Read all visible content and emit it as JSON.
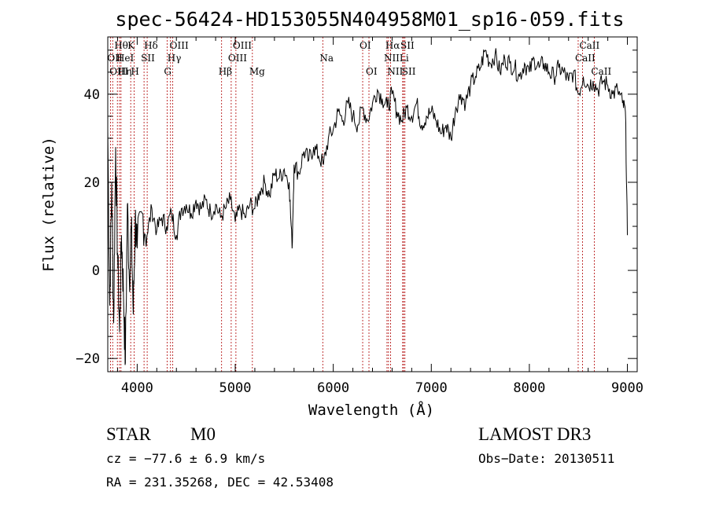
{
  "chart_data": {
    "type": "line",
    "title": "spec-56424-HD153055N404958M01_sp16-059.fits",
    "xlabel": "Wavelength (Å)",
    "ylabel": "Flux (relative)",
    "xlim": [
      3700,
      9100
    ],
    "ylim": [
      -23,
      53
    ],
    "x_ticks": [
      4000,
      5000,
      6000,
      7000,
      8000,
      9000
    ],
    "y_ticks": [
      -20,
      0,
      20,
      40
    ],
    "series": [
      {
        "name": "spectrum",
        "x": [
          3700,
          3720,
          3740,
          3760,
          3780,
          3800,
          3820,
          3840,
          3860,
          3880,
          3900,
          3920,
          3940,
          3960,
          3980,
          4000,
          4050,
          4100,
          4150,
          4200,
          4250,
          4300,
          4350,
          4400,
          4450,
          4500,
          4550,
          4600,
          4650,
          4700,
          4750,
          4800,
          4850,
          4900,
          4950,
          5000,
          5050,
          5100,
          5150,
          5200,
          5250,
          5300,
          5350,
          5400,
          5450,
          5500,
          5550,
          5580,
          5600,
          5650,
          5700,
          5750,
          5800,
          5850,
          5900,
          5950,
          6000,
          6050,
          6100,
          6150,
          6200,
          6250,
          6300,
          6350,
          6400,
          6450,
          6500,
          6550,
          6600,
          6650,
          6700,
          6750,
          6800,
          6850,
          6900,
          6950,
          7000,
          7050,
          7100,
          7150,
          7200,
          7250,
          7300,
          7350,
          7400,
          7450,
          7500,
          7550,
          7600,
          7650,
          7700,
          7750,
          7800,
          7850,
          7900,
          7950,
          8000,
          8050,
          8100,
          8150,
          8200,
          8250,
          8300,
          8350,
          8400,
          8450,
          8500,
          8550,
          8600,
          8650,
          8700,
          8750,
          8800,
          8850,
          8900,
          8950,
          8980,
          9000
        ],
        "y": [
          32,
          -8,
          20,
          -12,
          28,
          4,
          -14,
          8,
          -5,
          -21,
          15,
          -2,
          10,
          -10,
          12,
          5,
          13,
          8,
          14,
          9,
          12,
          10,
          13,
          8,
          14,
          15,
          13,
          16,
          14,
          16,
          13,
          15,
          12,
          14,
          16,
          11,
          14,
          12,
          15,
          14,
          18,
          20,
          17,
          22,
          21,
          23,
          20,
          5,
          24,
          22,
          27,
          25,
          28,
          26,
          24,
          30,
          32,
          36,
          34,
          38,
          35,
          33,
          37,
          34,
          38,
          41,
          39,
          37,
          40,
          36,
          34,
          37,
          35,
          38,
          33,
          35,
          36,
          34,
          31,
          33,
          30,
          37,
          40,
          38,
          42,
          44,
          46,
          50,
          47,
          49,
          45,
          48,
          47,
          46,
          44,
          47,
          45,
          48,
          46,
          47,
          45,
          44,
          46,
          45,
          43,
          45,
          40,
          44,
          42,
          43,
          41,
          43,
          42,
          40,
          41,
          38,
          36,
          8
        ]
      }
    ],
    "spectral_lines": [
      {
        "label": "Hθ",
        "x": 3798,
        "row": 0
      },
      {
        "label": "OII",
        "x": 3727,
        "row": 1
      },
      {
        "label": "OIII",
        "x": 3750,
        "row": 2
      },
      {
        "label": "HeI",
        "x": 3820,
        "row": 1
      },
      {
        "label": "Hη",
        "x": 3835,
        "row": 2
      },
      {
        "label": "K",
        "x": 3934,
        "row": 0
      },
      {
        "label": "H",
        "x": 3968,
        "row": 2
      },
      {
        "label": "SII",
        "x": 4070,
        "row": 1
      },
      {
        "label": "Hδ",
        "x": 4102,
        "row": 0
      },
      {
        "label": "OIII",
        "x": 4363,
        "row": 0
      },
      {
        "label": "Hγ",
        "x": 4340,
        "row": 1
      },
      {
        "label": "G",
        "x": 4305,
        "row": 2
      },
      {
        "label": "Hβ",
        "x": 4861,
        "row": 2
      },
      {
        "label": "OIII",
        "x": 5007,
        "row": 0
      },
      {
        "label": "OIII",
        "x": 4959,
        "row": 1
      },
      {
        "label": "Mg",
        "x": 5175,
        "row": 2
      },
      {
        "label": "Na",
        "x": 5893,
        "row": 1
      },
      {
        "label": "OI",
        "x": 6300,
        "row": 0
      },
      {
        "label": "OI",
        "x": 6364,
        "row": 2
      },
      {
        "label": "Hα",
        "x": 6563,
        "row": 0
      },
      {
        "label": "NII",
        "x": 6548,
        "row": 1
      },
      {
        "label": "NII",
        "x": 6584,
        "row": 2
      },
      {
        "label": "SII",
        "x": 6717,
        "row": 0
      },
      {
        "label": "Li",
        "x": 6708,
        "row": 1
      },
      {
        "label": "SII",
        "x": 6731,
        "row": 2
      },
      {
        "label": "CaII",
        "x": 8542,
        "row": 0
      },
      {
        "label": "CaII",
        "x": 8498,
        "row": 1
      },
      {
        "label": "CaII",
        "x": 8662,
        "row": 2
      }
    ]
  },
  "info": {
    "object_type": "STAR",
    "subclass": "M0",
    "survey": "LAMOST DR3",
    "redshift": "cz = −77.6 ± 6.9 km/s",
    "obs_date": "Obs−Date: 20130511",
    "coords": "RA = 231.35268, DEC =  42.53408"
  },
  "colors": {
    "line_marker": "#b00000",
    "spectrum": "#000000"
  }
}
